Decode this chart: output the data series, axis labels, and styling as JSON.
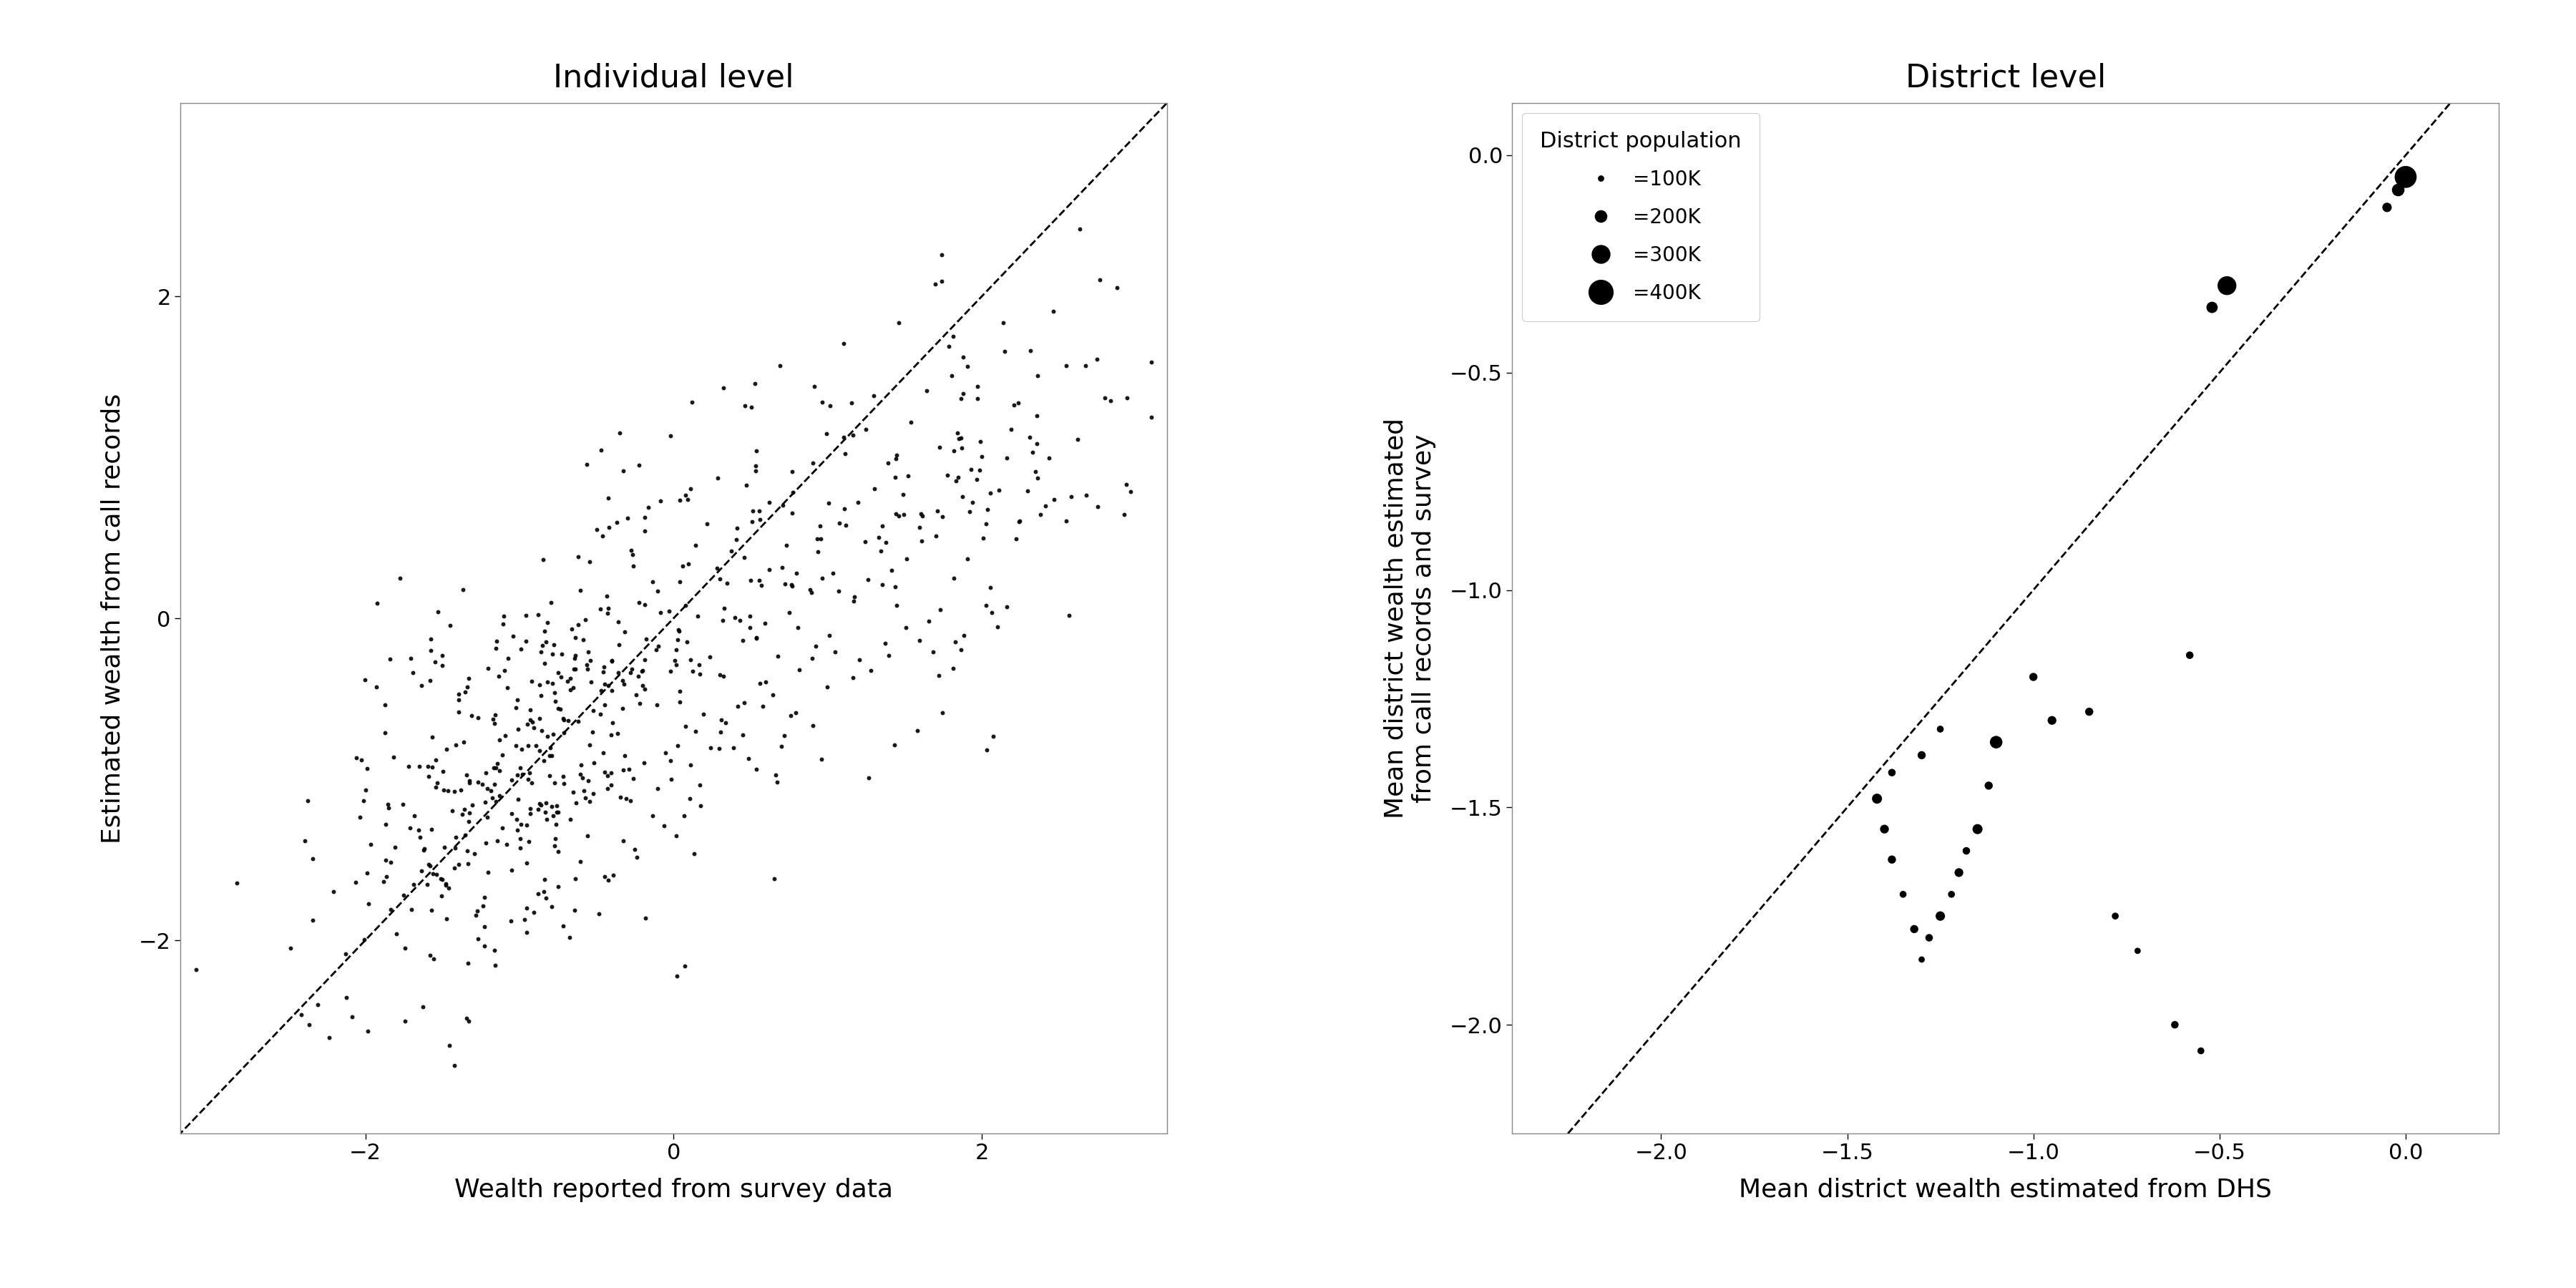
{
  "left_title": "Individual level",
  "right_title": "District level",
  "left_xlabel": "Wealth reported from survey data",
  "left_ylabel": "Estimated wealth from call records",
  "right_xlabel": "Mean district wealth estimated from DHS",
  "right_ylabel": "Mean district wealth estimated\nfrom call records and survey",
  "left_xlim": [
    -3.2,
    3.2
  ],
  "left_ylim": [
    -3.2,
    3.2
  ],
  "right_xlim": [
    -2.4,
    0.25
  ],
  "right_ylim": [
    -2.25,
    0.12
  ],
  "right_xticks": [
    -2.0,
    -1.5,
    -1.0,
    -0.5,
    0.0
  ],
  "right_yticks": [
    -2.0,
    -1.5,
    -1.0,
    -0.5,
    0.0
  ],
  "left_xticks": [
    -2,
    0,
    2
  ],
  "left_yticks": [
    -2,
    0,
    2
  ],
  "legend_title": "District population",
  "legend_entries": [
    "=100K",
    "=200K",
    "=300K",
    "=400K"
  ],
  "legend_sizes_k": [
    100,
    200,
    300,
    400
  ],
  "district_x": [
    0.0,
    -0.02,
    -0.05,
    -0.48,
    -0.52,
    -0.58,
    -1.0,
    -1.1,
    -1.12,
    -1.15,
    -1.18,
    -1.2,
    -1.22,
    -1.25,
    -1.28,
    -1.3,
    -1.32,
    -1.35,
    -1.38,
    -1.4,
    -1.42,
    -1.38,
    -1.3,
    -1.25,
    -0.95,
    -0.85,
    -0.78,
    -0.72,
    -0.62,
    -0.55
  ],
  "district_y": [
    -0.05,
    -0.08,
    -0.12,
    -0.3,
    -0.35,
    -1.15,
    -1.2,
    -1.35,
    -1.45,
    -1.55,
    -1.6,
    -1.65,
    -1.7,
    -1.75,
    -1.8,
    -1.85,
    -1.78,
    -1.7,
    -1.62,
    -1.55,
    -1.48,
    -1.42,
    -1.38,
    -1.32,
    -1.3,
    -1.28,
    -1.75,
    -1.83,
    -2.0,
    -2.06
  ],
  "district_pop_k": [
    350,
    200,
    150,
    300,
    180,
    120,
    130,
    200,
    130,
    160,
    120,
    140,
    110,
    150,
    120,
    100,
    130,
    110,
    130,
    140,
    160,
    120,
    130,
    110,
    140,
    130,
    110,
    100,
    120,
    110
  ],
  "dot_color": "#000000",
  "background_color": "#ffffff",
  "seed": 42,
  "n_points": 700
}
